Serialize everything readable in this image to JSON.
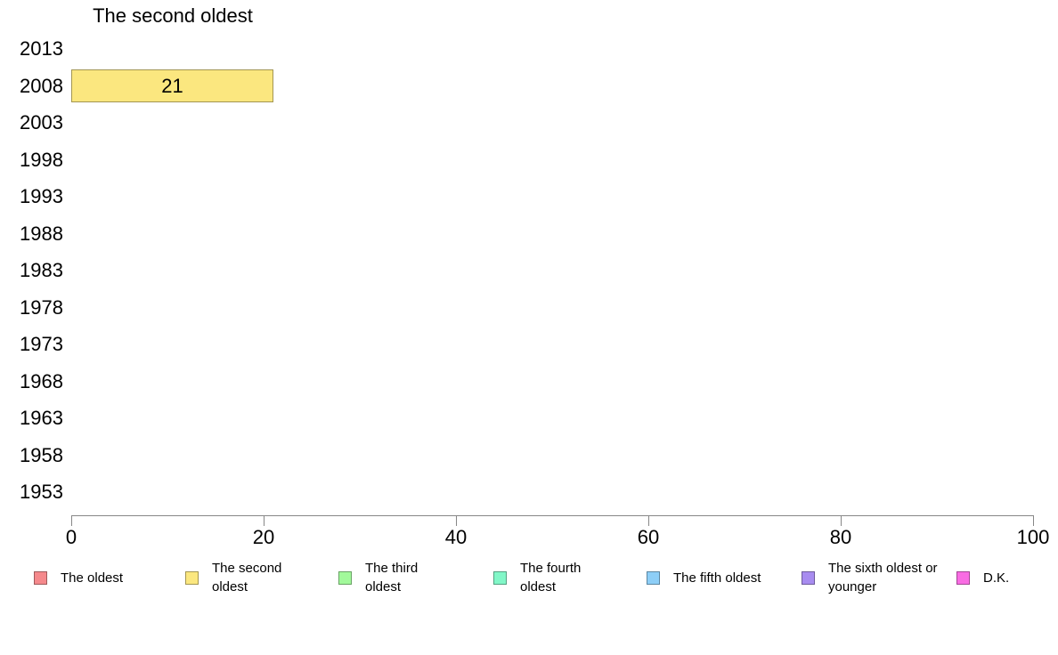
{
  "chart_data": {
    "type": "bar",
    "orientation": "horizontal",
    "title": "The second oldest",
    "categories": [
      "2013",
      "2008",
      "2003",
      "1998",
      "1993",
      "1988",
      "1983",
      "1978",
      "1973",
      "1968",
      "1963",
      "1958",
      "1953"
    ],
    "values": [
      null,
      21,
      null,
      null,
      null,
      null,
      null,
      null,
      null,
      null,
      null,
      null,
      null
    ],
    "bar_labels": [
      null,
      "21",
      null,
      null,
      null,
      null,
      null,
      null,
      null,
      null,
      null,
      null,
      null
    ],
    "bar_color": "#FBE77F",
    "bar_border_color": "rgba(0,0,0,0.35)",
    "axis_color": "#878787",
    "xlim": [
      0,
      100
    ],
    "x_ticks": [
      "0",
      "20",
      "40",
      "60",
      "80",
      "100"
    ],
    "grid": false,
    "legend_position": "bottom",
    "legend": [
      {
        "label": "The oldest",
        "color": "#F5898C"
      },
      {
        "label": "The second oldest",
        "color": "#FBE77F"
      },
      {
        "label": "The third oldest",
        "color": "#A2F99B"
      },
      {
        "label": "The fourth oldest",
        "color": "#82F7C8"
      },
      {
        "label": "The fifth oldest",
        "color": "#8DCEF7"
      },
      {
        "label": "The sixth oldest or younger",
        "color": "#A88CF0"
      },
      {
        "label": "D.K.",
        "color": "#F96CE3"
      }
    ]
  }
}
